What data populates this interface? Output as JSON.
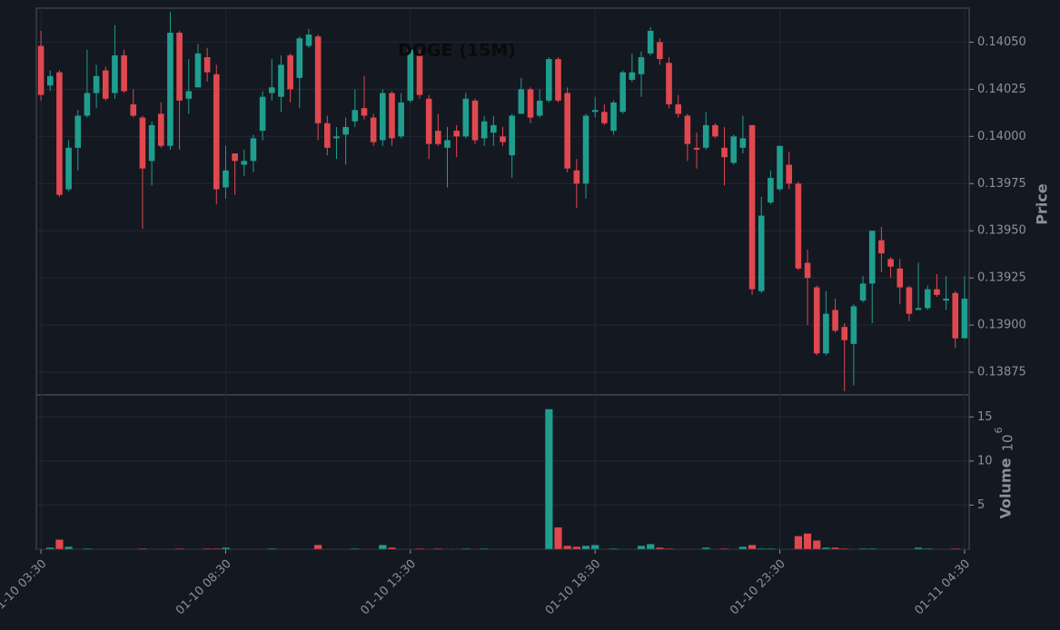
{
  "chart_data": {
    "type": "candlestick",
    "title": "DOGE (15M)",
    "y_label": "Price",
    "volume_label": "Volume",
    "volume_multiplier": {
      "base": "10",
      "exponent": "6"
    },
    "up_color": "#1f9e8e",
    "down_color": "#e0484f",
    "grid": true,
    "categories": [
      "01-10 03:30",
      null,
      null,
      null,
      null,
      null,
      null,
      null,
      null,
      null,
      null,
      null,
      null,
      null,
      null,
      null,
      null,
      null,
      null,
      null,
      "01-10 08:30",
      null,
      null,
      null,
      null,
      null,
      null,
      null,
      null,
      null,
      null,
      null,
      null,
      null,
      null,
      null,
      null,
      null,
      null,
      null,
      "01-10 13:30",
      null,
      null,
      null,
      null,
      null,
      null,
      null,
      null,
      null,
      null,
      null,
      null,
      null,
      null,
      null,
      null,
      null,
      null,
      null,
      "01-10 18:30",
      null,
      null,
      null,
      null,
      null,
      null,
      null,
      null,
      null,
      null,
      null,
      null,
      null,
      null,
      null,
      null,
      null,
      null,
      null,
      "01-10 23:30",
      null,
      null,
      null,
      null,
      null,
      null,
      null,
      null,
      null,
      null,
      null,
      null,
      null,
      null,
      null,
      null,
      null,
      null,
      null,
      "01-11 04:30"
    ],
    "open": [
      0.14048,
      0.14027,
      0.14034,
      0.13972,
      0.13994,
      0.14011,
      0.14023,
      0.14035,
      0.14023,
      0.14043,
      0.14017,
      0.1401,
      0.13987,
      0.14012,
      0.13995,
      0.14055,
      0.1402,
      0.14026,
      0.14042,
      0.14033,
      0.13973,
      0.13991,
      0.13985,
      0.13987,
      0.14003,
      0.14023,
      0.14021,
      0.14043,
      0.14031,
      0.14048,
      0.14053,
      0.14007,
      0.13999,
      0.14001,
      0.14008,
      0.14015,
      0.1401,
      0.13998,
      0.14023,
      0.14,
      0.14019,
      0.14043,
      0.1402,
      0.14003,
      0.13994,
      0.14003,
      0.14,
      0.14019,
      0.13999,
      0.14002,
      0.14,
      0.1399,
      0.14012,
      0.14025,
      0.14011,
      0.14019,
      0.14041,
      0.14023,
      0.13982,
      0.13975,
      0.14013,
      0.14013,
      0.14003,
      0.14013,
      0.1403,
      0.14033,
      0.14044,
      0.1405,
      0.14039,
      0.14017,
      0.14011,
      0.13994,
      0.13994,
      0.14006,
      0.13994,
      0.13986,
      0.13994,
      0.14006,
      0.13918,
      0.13965,
      0.13972,
      0.13985,
      0.13975,
      0.13933,
      0.1392,
      0.13885,
      0.13908,
      0.13899,
      0.1389,
      0.13913,
      0.13922,
      0.13945,
      0.13935,
      0.1393,
      0.1392,
      0.13908,
      0.13909,
      0.13919,
      0.13913,
      0.13917,
      0.13893
    ],
    "high": [
      0.14056,
      0.14035,
      0.14035,
      0.13998,
      0.14014,
      0.14046,
      0.14038,
      0.14037,
      0.14059,
      0.14046,
      0.14025,
      0.14011,
      0.14008,
      0.14018,
      0.14066,
      0.14056,
      0.14041,
      0.14049,
      0.14047,
      0.14038,
      0.13995,
      0.13991,
      0.13993,
      0.14001,
      0.14024,
      0.14041,
      0.14043,
      0.14044,
      0.14053,
      0.14057,
      0.14054,
      0.14011,
      0.14005,
      0.1401,
      0.14025,
      0.14032,
      0.14012,
      0.14025,
      0.14024,
      0.14023,
      0.14047,
      0.14046,
      0.14022,
      0.14012,
      0.14005,
      0.14006,
      0.14023,
      0.1402,
      0.14011,
      0.14011,
      0.14005,
      0.14012,
      0.14031,
      0.14026,
      0.14025,
      0.14042,
      0.14042,
      0.14026,
      0.13988,
      0.14012,
      0.14021,
      0.14017,
      0.14019,
      0.14035,
      0.14044,
      0.14045,
      0.14058,
      0.14052,
      0.14042,
      0.14022,
      0.14012,
      0.14002,
      0.14013,
      0.14007,
      0.14005,
      0.14001,
      0.14011,
      0.14006,
      0.13968,
      0.13982,
      0.13995,
      0.13992,
      0.13976,
      0.1394,
      0.13921,
      0.13918,
      0.13914,
      0.13901,
      0.13911,
      0.13926,
      0.1395,
      0.13952,
      0.13936,
      0.13935,
      0.13921,
      0.13933,
      0.13921,
      0.13927,
      0.13926,
      0.13918,
      0.13926
    ],
    "low": [
      0.14019,
      0.14024,
      0.13968,
      0.13971,
      0.13982,
      0.1401,
      0.14015,
      0.14019,
      0.1402,
      0.14023,
      0.1401,
      0.13951,
      0.13974,
      0.13994,
      0.13993,
      0.13993,
      0.14012,
      0.14026,
      0.14029,
      0.13964,
      0.13967,
      0.13969,
      0.13979,
      0.13981,
      0.13998,
      0.14019,
      0.14013,
      0.14018,
      0.14015,
      0.14047,
      0.13998,
      0.1399,
      0.13988,
      0.13985,
      0.14005,
      0.14009,
      0.13995,
      0.13995,
      0.13995,
      0.13999,
      0.14018,
      0.1402,
      0.13988,
      0.13995,
      0.13973,
      0.13989,
      0.13999,
      0.13996,
      0.13995,
      0.13995,
      0.13995,
      0.13978,
      0.14012,
      0.14007,
      0.1401,
      0.14018,
      0.14018,
      0.13981,
      0.13962,
      0.13967,
      0.1401,
      0.14006,
      0.14001,
      0.14012,
      0.14029,
      0.14021,
      0.14043,
      0.14038,
      0.14015,
      0.1401,
      0.13987,
      0.13983,
      0.13993,
      0.13999,
      0.13974,
      0.13985,
      0.13991,
      0.13916,
      0.13917,
      0.13964,
      0.13971,
      0.13972,
      0.13929,
      0.139,
      0.13884,
      0.13884,
      0.13896,
      0.13865,
      0.13868,
      0.13912,
      0.13901,
      0.13928,
      0.13925,
      0.13911,
      0.13902,
      0.13908,
      0.13908,
      0.13915,
      0.13908,
      0.13888,
      0.13893
    ],
    "close": [
      0.14022,
      0.14032,
      0.13969,
      0.13994,
      0.14011,
      0.14023,
      0.14032,
      0.1402,
      0.14043,
      0.14024,
      0.14011,
      0.13983,
      0.14006,
      0.13995,
      0.14055,
      0.14019,
      0.14024,
      0.14044,
      0.14034,
      0.13972,
      0.13982,
      0.13987,
      0.13987,
      0.13999,
      0.14021,
      0.14026,
      0.14038,
      0.14025,
      0.14052,
      0.14054,
      0.14007,
      0.13994,
      0.14,
      0.14005,
      0.14014,
      0.14011,
      0.13997,
      0.14023,
      0.13999,
      0.14018,
      0.14046,
      0.14022,
      0.13996,
      0.13996,
      0.13998,
      0.14,
      0.1402,
      0.13998,
      0.14008,
      0.14006,
      0.13997,
      0.14011,
      0.14025,
      0.1401,
      0.14019,
      0.14041,
      0.14019,
      0.13983,
      0.13975,
      0.14011,
      0.14014,
      0.14007,
      0.14018,
      0.14034,
      0.14034,
      0.14042,
      0.14056,
      0.14041,
      0.14017,
      0.14012,
      0.13996,
      0.13993,
      0.14006,
      0.14,
      0.13989,
      0.14,
      0.13999,
      0.13919,
      0.13958,
      0.13978,
      0.13995,
      0.13975,
      0.1393,
      0.13925,
      0.13885,
      0.13906,
      0.13897,
      0.13892,
      0.1391,
      0.13922,
      0.1395,
      0.13938,
      0.13931,
      0.1392,
      0.13906,
      0.13909,
      0.13919,
      0.13916,
      0.13914,
      0.13893,
      0.13914
    ],
    "volume": [
      0.05,
      0.2,
      1.1,
      0.3,
      0.02,
      0.1,
      0.02,
      0.02,
      0.02,
      0.02,
      0.02,
      0.1,
      0.02,
      0.02,
      0.02,
      0.1,
      0.02,
      0.02,
      0.1,
      0.1,
      0.2,
      0.02,
      0.02,
      0.02,
      0.02,
      0.1,
      0.02,
      0.02,
      0.02,
      0.02,
      0.5,
      0.02,
      0.02,
      0.02,
      0.1,
      0.02,
      0.02,
      0.5,
      0.2,
      0.02,
      0.02,
      0.1,
      0.02,
      0.1,
      0.02,
      0.02,
      0.1,
      0.02,
      0.1,
      0.02,
      0.02,
      0.02,
      0.02,
      0.02,
      0.02,
      15.9,
      2.5,
      0.4,
      0.3,
      0.4,
      0.5,
      0.02,
      0.1,
      0.02,
      0.02,
      0.4,
      0.6,
      0.2,
      0.1,
      0.02,
      0.02,
      0.02,
      0.2,
      0.02,
      0.1,
      0.02,
      0.3,
      0.5,
      0.1,
      0.1,
      0.02,
      0.02,
      1.5,
      1.8,
      1.0,
      0.2,
      0.2,
      0.1,
      0.02,
      0.1,
      0.1,
      0.02,
      0.02,
      0.02,
      0.02,
      0.2,
      0.1,
      0.02,
      0.02,
      0.1,
      0.02
    ],
    "ylim": [
      0.13863,
      0.14068
    ],
    "yticks": [
      0.13875,
      {
        "value": 0.139,
        "label": "0.13900"
      },
      0.13925,
      {
        "value": 0.1395,
        "label": "0.13950"
      },
      0.13975,
      {
        "value": 0.14,
        "label": "0.14000"
      },
      0.14025,
      {
        "value": 0.1405,
        "label": "0.14050"
      }
    ],
    "volume_ylim": [
      0,
      17.5
    ],
    "volume_yticks": [
      5,
      10,
      15
    ]
  }
}
